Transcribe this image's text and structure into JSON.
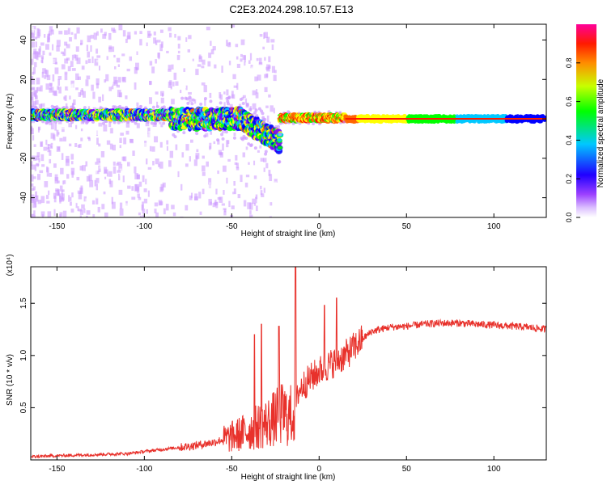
{
  "title": "C2E3.2024.298.10.57.E13",
  "colors": {
    "snr_line": "#e8312b",
    "axis": "#000000",
    "background": "#ffffff"
  },
  "chart_data": [
    {
      "type": "heatmap",
      "name": "spectrogram",
      "xlabel": "Height of straight line (km)",
      "ylabel": "Frequency (Hz)",
      "xlim": [
        -165,
        130
      ],
      "ylim": [
        -50,
        48
      ],
      "xticks": [
        -150,
        -100,
        -50,
        0,
        50,
        100
      ],
      "yticks": [
        -40,
        -20,
        0,
        20,
        40
      ],
      "colorbar": {
        "label": "Normalized spectral amplitude",
        "range": [
          0,
          1
        ],
        "ticks": [
          0.0,
          0.2,
          0.4,
          0.6,
          0.8
        ],
        "colormap": [
          "#ffffff",
          "#cc99ff",
          "#7a00ff",
          "#0000ff",
          "#00c8ff",
          "#00ff00",
          "#ffff00",
          "#ff6600",
          "#ff0000",
          "#ff00aa"
        ]
      },
      "trace": {
        "description": "dominant frequency band near 0 Hz",
        "segments": [
          {
            "x_range": [
              -165,
              -85
            ],
            "center_hz": 2,
            "spread_hz": 4
          },
          {
            "x_range": [
              -85,
              -22
            ],
            "center_hz": 0,
            "spread_hz": 10,
            "tail_to_hz": -20
          },
          {
            "x_range": [
              -22,
              15
            ],
            "center_hz": 0.5,
            "spread_hz": 3
          },
          {
            "x_range": [
              15,
              130
            ],
            "center_hz": 0,
            "spread_hz": 3
          }
        ]
      }
    },
    {
      "type": "line",
      "name": "snr",
      "xlabel": "Height of straight line (km)",
      "ylabel": "SNR (10 * v/v)",
      "y_multiplier": "(x10⁴)",
      "xlim": [
        -165,
        130
      ],
      "ylim": [
        0,
        1.85
      ],
      "xticks": [
        -150,
        -100,
        -50,
        0,
        50,
        100
      ],
      "yticks": [
        0.5,
        1.0,
        1.5
      ],
      "ytick_labels": [
        "0.5",
        "1.0",
        "1.5"
      ],
      "series": [
        {
          "name": "SNR",
          "x": [
            -165,
            -150,
            -130,
            -110,
            -100,
            -90,
            -80,
            -70,
            -60,
            -50,
            -40,
            -35,
            -30,
            -25,
            -20,
            -18,
            -15,
            -13,
            -12,
            -10,
            -5,
            0,
            5,
            10,
            15,
            20,
            25,
            30,
            40,
            50,
            60,
            70,
            80,
            90,
            100,
            110,
            120,
            130
          ],
          "values": [
            0.03,
            0.04,
            0.05,
            0.06,
            0.08,
            0.1,
            0.12,
            0.14,
            0.17,
            0.22,
            0.28,
            0.32,
            0.35,
            0.4,
            0.45,
            0.4,
            0.45,
            0.5,
            0.65,
            0.7,
            0.78,
            0.85,
            0.9,
            0.95,
            1.0,
            1.08,
            1.16,
            1.23,
            1.27,
            1.28,
            1.3,
            1.31,
            1.31,
            1.3,
            1.29,
            1.28,
            1.27,
            1.25
          ],
          "spikes": [
            {
              "x": -13.5,
              "y": 1.85
            },
            {
              "x": 10,
              "y": 1.55
            },
            {
              "x": 3,
              "y": 1.48
            },
            {
              "x": -33,
              "y": 1.3
            },
            {
              "x": -23,
              "y": 1.28
            },
            {
              "x": -37,
              "y": 1.2
            }
          ]
        }
      ]
    }
  ]
}
